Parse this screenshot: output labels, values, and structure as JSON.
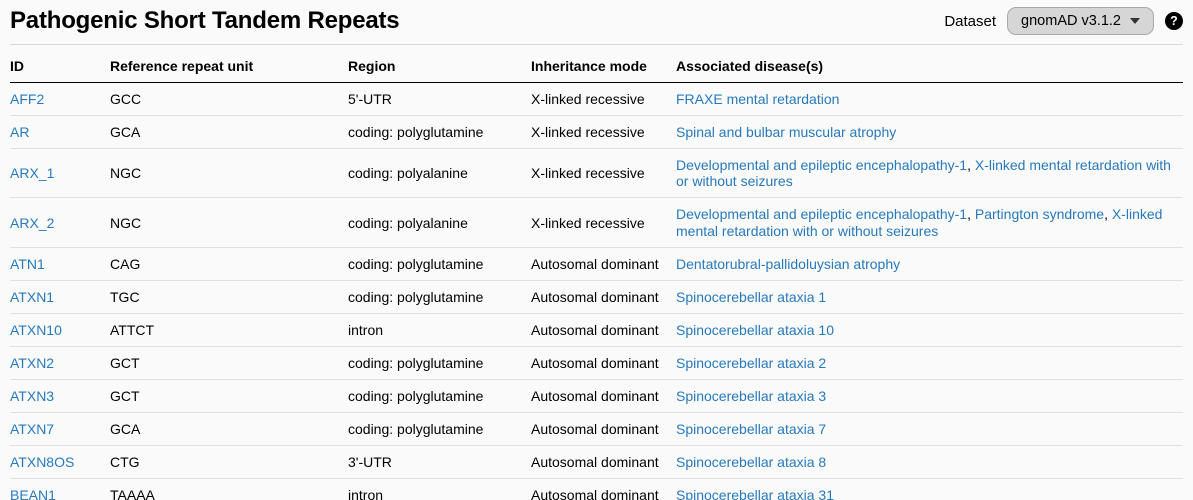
{
  "header": {
    "title": "Pathogenic Short Tandem Repeats",
    "dataset_label": "Dataset",
    "dataset_value": "gnomAD v3.1.2",
    "help_icon_glyph": "?"
  },
  "colors": {
    "link_blue": "#2779bd",
    "header_border": "#000000",
    "row_border": "#e1e1e1",
    "dataset_button_bg": "#d6d6d6",
    "page_bg": "#fafafa"
  },
  "table": {
    "columns": [
      "ID",
      "Reference repeat unit",
      "Region",
      "Inheritance mode",
      "Associated disease(s)"
    ],
    "rows": [
      {
        "id": "AFF2",
        "repeat_unit": "GCC",
        "region": "5'-UTR",
        "inheritance": "X-linked recessive",
        "diseases": [
          "FRAXE mental retardation"
        ]
      },
      {
        "id": "AR",
        "repeat_unit": "GCA",
        "region": "coding: polyglutamine",
        "inheritance": "X-linked recessive",
        "diseases": [
          "Spinal and bulbar muscular atrophy"
        ]
      },
      {
        "id": "ARX_1",
        "repeat_unit": "NGC",
        "region": "coding: polyalanine",
        "inheritance": "X-linked recessive",
        "diseases": [
          "Developmental and epileptic encephalopathy-1",
          "X-linked mental retardation with or without seizures"
        ]
      },
      {
        "id": "ARX_2",
        "repeat_unit": "NGC",
        "region": "coding: polyalanine",
        "inheritance": "X-linked recessive",
        "diseases": [
          "Developmental and epileptic encephalopathy-1",
          "Partington syndrome",
          "X-linked mental retardation with or without seizures"
        ]
      },
      {
        "id": "ATN1",
        "repeat_unit": "CAG",
        "region": "coding: polyglutamine",
        "inheritance": "Autosomal dominant",
        "diseases": [
          "Dentatorubral-pallidoluysian atrophy"
        ]
      },
      {
        "id": "ATXN1",
        "repeat_unit": "TGC",
        "region": "coding: polyglutamine",
        "inheritance": "Autosomal dominant",
        "diseases": [
          "Spinocerebellar ataxia 1"
        ]
      },
      {
        "id": "ATXN10",
        "repeat_unit": "ATTCT",
        "region": "intron",
        "inheritance": "Autosomal dominant",
        "diseases": [
          "Spinocerebellar ataxia 10"
        ]
      },
      {
        "id": "ATXN2",
        "repeat_unit": "GCT",
        "region": "coding: polyglutamine",
        "inheritance": "Autosomal dominant",
        "diseases": [
          "Spinocerebellar ataxia 2"
        ]
      },
      {
        "id": "ATXN3",
        "repeat_unit": "GCT",
        "region": "coding: polyglutamine",
        "inheritance": "Autosomal dominant",
        "diseases": [
          "Spinocerebellar ataxia 3"
        ]
      },
      {
        "id": "ATXN7",
        "repeat_unit": "GCA",
        "region": "coding: polyglutamine",
        "inheritance": "Autosomal dominant",
        "diseases": [
          "Spinocerebellar ataxia 7"
        ]
      },
      {
        "id": "ATXN8OS",
        "repeat_unit": "CTG",
        "region": "3'-UTR",
        "inheritance": "Autosomal dominant",
        "diseases": [
          "Spinocerebellar ataxia 8"
        ]
      },
      {
        "id": "BEAN1",
        "repeat_unit": "TAAAA",
        "region": "intron",
        "inheritance": "Autosomal dominant",
        "diseases": [
          "Spinocerebellar ataxia 31"
        ]
      }
    ]
  }
}
